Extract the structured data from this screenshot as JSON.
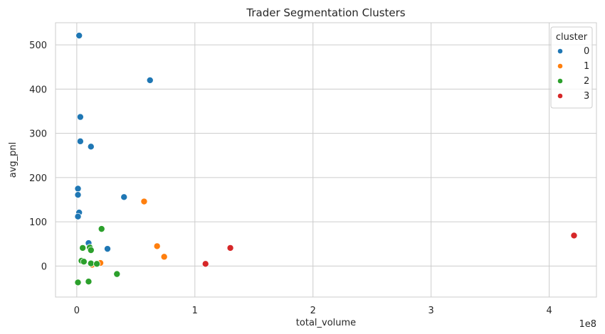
{
  "chart_data": {
    "type": "scatter",
    "title": "Trader Segmentation Clusters",
    "xlabel": "total_volume",
    "ylabel": "avg_pnl",
    "x_offset_label": "1e8",
    "xlim": [
      -0.18,
      4.4
    ],
    "ylim": [
      -70,
      550
    ],
    "x_ticks": [
      0,
      1,
      2,
      3,
      4
    ],
    "y_ticks": [
      0,
      100,
      200,
      300,
      400,
      500
    ],
    "x_unit_multiplier": 100000000,
    "grid": true,
    "legend": {
      "title": "cluster",
      "placement": "top-right"
    },
    "series": [
      {
        "name": "0",
        "color": "#1f77b4",
        "points": [
          [
            0.02,
            521
          ],
          [
            0.62,
            420
          ],
          [
            0.03,
            337
          ],
          [
            0.03,
            282
          ],
          [
            0.12,
            270
          ],
          [
            0.01,
            175
          ],
          [
            0.01,
            161
          ],
          [
            0.4,
            156
          ],
          [
            0.02,
            121
          ],
          [
            0.01,
            112
          ],
          [
            0.1,
            52
          ],
          [
            0.26,
            39
          ]
        ]
      },
      {
        "name": "1",
        "color": "#ff7f0e",
        "points": [
          [
            0.57,
            146
          ],
          [
            0.68,
            45
          ],
          [
            0.74,
            21
          ],
          [
            0.2,
            7
          ],
          [
            0.13,
            3
          ]
        ]
      },
      {
        "name": "2",
        "color": "#2ca02c",
        "points": [
          [
            0.21,
            84
          ],
          [
            0.05,
            41
          ],
          [
            0.11,
            42
          ],
          [
            0.12,
            36
          ],
          [
            0.04,
            12
          ],
          [
            0.06,
            10
          ],
          [
            0.12,
            6
          ],
          [
            0.17,
            5
          ],
          [
            0.34,
            -18
          ],
          [
            0.01,
            -37
          ],
          [
            0.1,
            -35
          ]
        ]
      },
      {
        "name": "3",
        "color": "#d62728",
        "points": [
          [
            4.21,
            69
          ],
          [
            1.3,
            41
          ],
          [
            1.09,
            5
          ]
        ]
      }
    ]
  }
}
